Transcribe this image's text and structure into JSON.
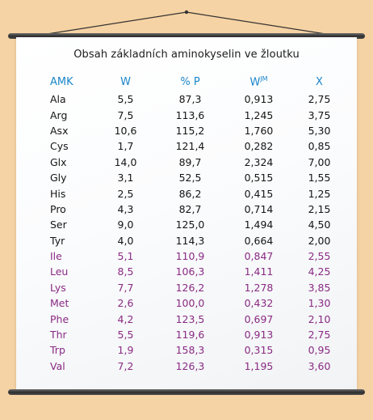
{
  "title": "Obsah základních aminokyselin ve žloutku",
  "headers": {
    "amk": "AMK",
    "w": "W",
    "p": "% P",
    "wjm_base": "W",
    "wjm_sup": "JM",
    "x": "X"
  },
  "colors": {
    "header": "#1b86c9",
    "nonessential": "#151515",
    "essential": "#8a2a83",
    "background": "#f6d3a4"
  },
  "rows": [
    {
      "amk": "Ala",
      "w": "5,5",
      "p": "87,3",
      "wjm": "0,913",
      "x": "2,75",
      "essential": false
    },
    {
      "amk": "Arg",
      "w": "7,5",
      "p": "113,6",
      "wjm": "1,245",
      "x": "3,75",
      "essential": false
    },
    {
      "amk": "Asx",
      "w": "10,6",
      "p": "115,2",
      "wjm": "1,760",
      "x": "5,30",
      "essential": false
    },
    {
      "amk": "Cys",
      "w": "1,7",
      "p": "121,4",
      "wjm": "0,282",
      "x": "0,85",
      "essential": false
    },
    {
      "amk": "Glx",
      "w": "14,0",
      "p": "89,7",
      "wjm": "2,324",
      "x": "7,00",
      "essential": false
    },
    {
      "amk": "Gly",
      "w": "3,1",
      "p": "52,5",
      "wjm": "0,515",
      "x": "1,55",
      "essential": false
    },
    {
      "amk": "His",
      "w": "2,5",
      "p": "86,2",
      "wjm": "0,415",
      "x": "1,25",
      "essential": false
    },
    {
      "amk": "Pro",
      "w": "4,3",
      "p": "82,7",
      "wjm": "0,714",
      "x": "2,15",
      "essential": false
    },
    {
      "amk": "Ser",
      "w": "9,0",
      "p": "125,0",
      "wjm": "1,494",
      "x": "4,50",
      "essential": false
    },
    {
      "amk": "Tyr",
      "w": "4,0",
      "p": "114,3",
      "wjm": "0,664",
      "x": "2,00",
      "essential": false
    },
    {
      "amk": "Ile",
      "w": "5,1",
      "p": "110,9",
      "wjm": "0,847",
      "x": "2,55",
      "essential": true
    },
    {
      "amk": "Leu",
      "w": "8,5",
      "p": "106,3",
      "wjm": "1,411",
      "x": "4,25",
      "essential": true
    },
    {
      "amk": "Lys",
      "w": "7,7",
      "p": "126,2",
      "wjm": "1,278",
      "x": "3,85",
      "essential": true
    },
    {
      "amk": "Met",
      "w": "2,6",
      "p": "100,0",
      "wjm": "0,432",
      "x": "1,30",
      "essential": true
    },
    {
      "amk": "Phe",
      "w": "4,2",
      "p": "123,5",
      "wjm": "0,697",
      "x": "2,10",
      "essential": true
    },
    {
      "amk": "Thr",
      "w": "5,5",
      "p": "119,6",
      "wjm": "0,913",
      "x": "2,75",
      "essential": true
    },
    {
      "amk": "Trp",
      "w": "1,9",
      "p": "158,3",
      "wjm": "0,315",
      "x": "0,95",
      "essential": true
    },
    {
      "amk": "Val",
      "w": "7,2",
      "p": "126,3",
      "wjm": "1,195",
      "x": "3,60",
      "essential": true
    }
  ]
}
